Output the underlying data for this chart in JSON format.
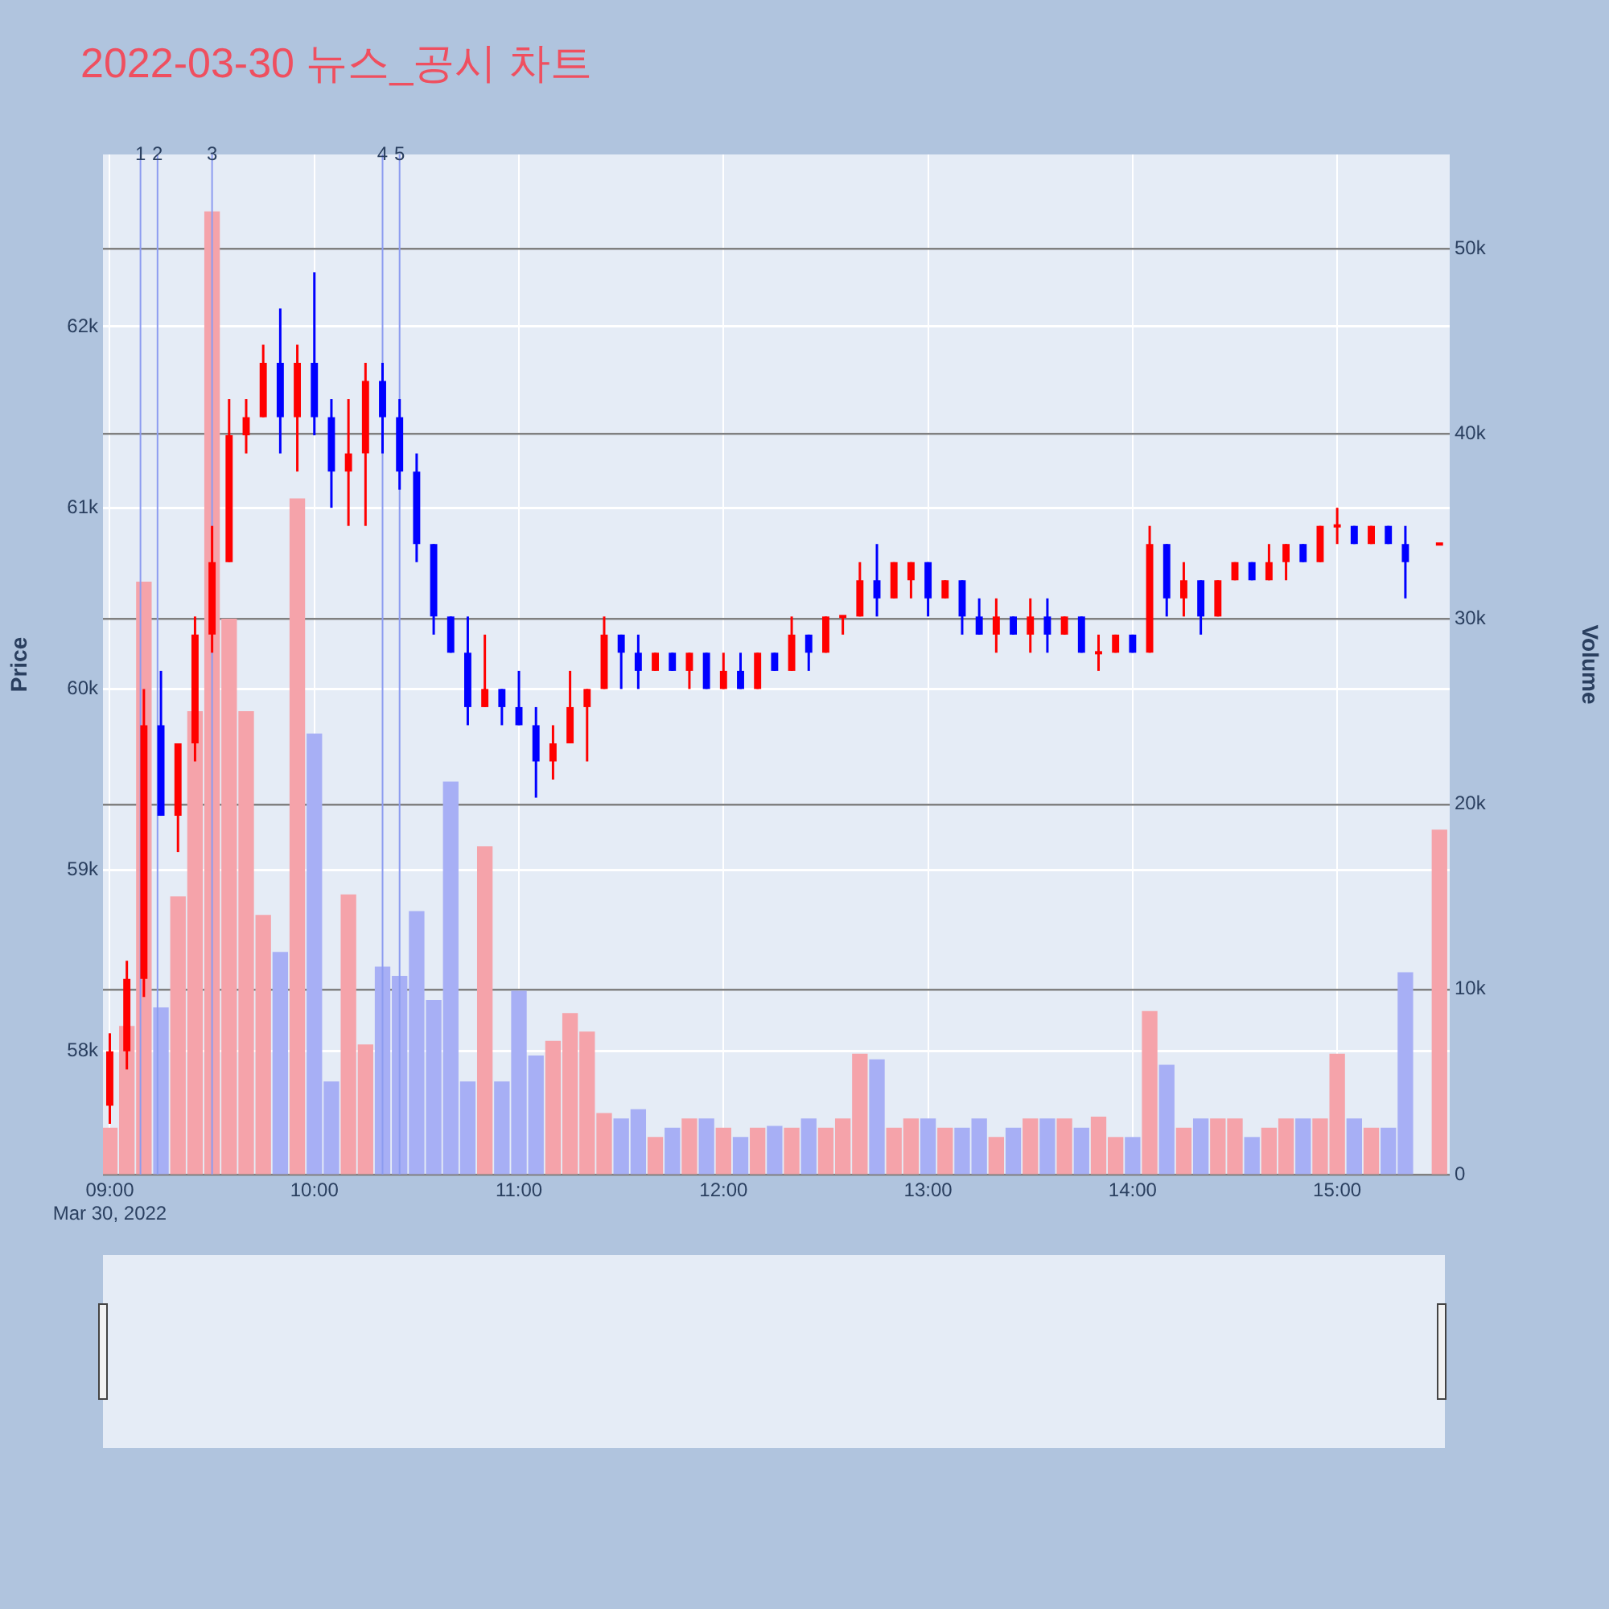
{
  "chart_data": {
    "type": "candlestick",
    "title": "2022-03-30 뉴스_공시 차트",
    "ylabel": "Price",
    "y2label": "Volume",
    "x": [
      "2022-03-30T09:00",
      "2022-03-30T09:05",
      "2022-03-30T09:10",
      "2022-03-30T09:15",
      "2022-03-30T09:20",
      "2022-03-30T09:25",
      "2022-03-30T09:30",
      "2022-03-30T09:35",
      "2022-03-30T09:40",
      "2022-03-30T09:45",
      "2022-03-30T09:50",
      "2022-03-30T09:55",
      "2022-03-30T10:00",
      "2022-03-30T10:05",
      "2022-03-30T10:10",
      "2022-03-30T10:15",
      "2022-03-30T10:20",
      "2022-03-30T10:25",
      "2022-03-30T10:30",
      "2022-03-30T10:35",
      "2022-03-30T10:40",
      "2022-03-30T10:45",
      "2022-03-30T10:50",
      "2022-03-30T10:55",
      "2022-03-30T11:00",
      "2022-03-30T11:05",
      "2022-03-30T11:10",
      "2022-03-30T11:15",
      "2022-03-30T11:20",
      "2022-03-30T11:25",
      "2022-03-30T11:30",
      "2022-03-30T11:35",
      "2022-03-30T11:40",
      "2022-03-30T11:45",
      "2022-03-30T11:50",
      "2022-03-30T11:55",
      "2022-03-30T12:00",
      "2022-03-30T12:05",
      "2022-03-30T12:10",
      "2022-03-30T12:15",
      "2022-03-30T12:20",
      "2022-03-30T12:25",
      "2022-03-30T12:30",
      "2022-03-30T12:35",
      "2022-03-30T12:40",
      "2022-03-30T12:45",
      "2022-03-30T12:50",
      "2022-03-30T12:55",
      "2022-03-30T13:00",
      "2022-03-30T13:05",
      "2022-03-30T13:10",
      "2022-03-30T13:15",
      "2022-03-30T13:20",
      "2022-03-30T13:25",
      "2022-03-30T13:30",
      "2022-03-30T13:35",
      "2022-03-30T13:40",
      "2022-03-30T13:45",
      "2022-03-30T13:50",
      "2022-03-30T13:55",
      "2022-03-30T14:00",
      "2022-03-30T14:05",
      "2022-03-30T14:10",
      "2022-03-30T14:15",
      "2022-03-30T14:20",
      "2022-03-30T14:25",
      "2022-03-30T14:30",
      "2022-03-30T14:35",
      "2022-03-30T14:40",
      "2022-03-30T14:45",
      "2022-03-30T14:50",
      "2022-03-30T14:55",
      "2022-03-30T15:00",
      "2022-03-30T15:05",
      "2022-03-30T15:10",
      "2022-03-30T15:15",
      "2022-03-30T15:20",
      "2022-03-30T15:30"
    ],
    "series": [
      {
        "type": "candlestick",
        "ohlc": [
          [
            57700,
            58100,
            57600,
            58000
          ],
          [
            58000,
            58500,
            57900,
            58400
          ],
          [
            58400,
            60000,
            58300,
            59800
          ],
          [
            59800,
            60100,
            59300,
            59300
          ],
          [
            59300,
            59700,
            59100,
            59700
          ],
          [
            59700,
            60400,
            59600,
            60300
          ],
          [
            60300,
            60900,
            60200,
            60700
          ],
          [
            60700,
            61600,
            60700,
            61400
          ],
          [
            61400,
            61600,
            61300,
            61500
          ],
          [
            61500,
            61900,
            61500,
            61800
          ],
          [
            61800,
            62100,
            61300,
            61500
          ],
          [
            61500,
            61900,
            61200,
            61800
          ],
          [
            61800,
            62300,
            61400,
            61500
          ],
          [
            61500,
            61600,
            61000,
            61200
          ],
          [
            61200,
            61600,
            60900,
            61300
          ],
          [
            61300,
            61800,
            60900,
            61700
          ],
          [
            61700,
            61800,
            61300,
            61500
          ],
          [
            61500,
            61600,
            61100,
            61200
          ],
          [
            61200,
            61300,
            60700,
            60800
          ],
          [
            60800,
            60800,
            60300,
            60400
          ],
          [
            60400,
            60400,
            60200,
            60200
          ],
          [
            60200,
            60400,
            59800,
            59900
          ],
          [
            59900,
            60300,
            59900,
            60000
          ],
          [
            60000,
            60000,
            59800,
            59900
          ],
          [
            59900,
            60100,
            59800,
            59800
          ],
          [
            59800,
            59900,
            59400,
            59600
          ],
          [
            59600,
            59800,
            59500,
            59700
          ],
          [
            59700,
            60100,
            59700,
            59900
          ],
          [
            59900,
            60000,
            59600,
            60000
          ],
          [
            60000,
            60400,
            60000,
            60300
          ],
          [
            60300,
            60300,
            60000,
            60200
          ],
          [
            60200,
            60300,
            60000,
            60100
          ],
          [
            60100,
            60200,
            60100,
            60200
          ],
          [
            60200,
            60200,
            60100,
            60100
          ],
          [
            60100,
            60200,
            60000,
            60200
          ],
          [
            60200,
            60200,
            60000,
            60000
          ],
          [
            60000,
            60200,
            60000,
            60100
          ],
          [
            60100,
            60200,
            60000,
            60000
          ],
          [
            60000,
            60200,
            60000,
            60200
          ],
          [
            60200,
            60200,
            60100,
            60100
          ],
          [
            60100,
            60400,
            60100,
            60300
          ],
          [
            60300,
            60300,
            60100,
            60200
          ],
          [
            60200,
            60400,
            60200,
            60400
          ],
          [
            60400,
            60400,
            60300,
            60400
          ],
          [
            60400,
            60700,
            60400,
            60600
          ],
          [
            60600,
            60800,
            60400,
            60500
          ],
          [
            60500,
            60700,
            60500,
            60700
          ],
          [
            60600,
            60700,
            60500,
            60700
          ],
          [
            60700,
            60700,
            60400,
            60500
          ],
          [
            60500,
            60600,
            60500,
            60600
          ],
          [
            60600,
            60600,
            60300,
            60400
          ],
          [
            60400,
            60500,
            60300,
            60300
          ],
          [
            60300,
            60500,
            60200,
            60400
          ],
          [
            60400,
            60400,
            60300,
            60300
          ],
          [
            60300,
            60500,
            60200,
            60400
          ],
          [
            60400,
            60500,
            60200,
            60300
          ],
          [
            60300,
            60400,
            60300,
            60400
          ],
          [
            60400,
            60400,
            60200,
            60200
          ],
          [
            60200,
            60300,
            60100,
            60200
          ],
          [
            60200,
            60300,
            60200,
            60300
          ],
          [
            60300,
            60300,
            60200,
            60200
          ],
          [
            60200,
            60900,
            60200,
            60800
          ],
          [
            60800,
            60800,
            60400,
            60500
          ],
          [
            60500,
            60700,
            60400,
            60600
          ],
          [
            60600,
            60600,
            60300,
            60400
          ],
          [
            60400,
            60600,
            60400,
            60600
          ],
          [
            60600,
            60700,
            60600,
            60700
          ],
          [
            60700,
            60700,
            60600,
            60600
          ],
          [
            60600,
            60800,
            60600,
            60700
          ],
          [
            60700,
            60800,
            60600,
            60800
          ],
          [
            60800,
            60800,
            60700,
            60700
          ],
          [
            60700,
            60900,
            60700,
            60900
          ],
          [
            60900,
            61000,
            60800,
            60900
          ],
          [
            60900,
            60900,
            60800,
            60800
          ],
          [
            60800,
            60900,
            60800,
            60900
          ],
          [
            60900,
            60900,
            60800,
            60800
          ],
          [
            60800,
            60900,
            60500,
            60700
          ],
          [
            60800,
            60800,
            60800,
            60800
          ]
        ],
        "colors": [
          "#ff0000",
          "#ff0000",
          "#ff0000",
          "#0000ff",
          "#ff0000",
          "#ff0000",
          "#ff0000",
          "#ff0000",
          "#ff0000",
          "#ff0000",
          "#0000ff",
          "#ff0000",
          "#0000ff",
          "#0000ff",
          "#ff0000",
          "#ff0000",
          "#0000ff",
          "#0000ff",
          "#0000ff",
          "#0000ff",
          "#0000ff",
          "#0000ff",
          "#ff0000",
          "#0000ff",
          "#0000ff",
          "#0000ff",
          "#ff0000",
          "#ff0000",
          "#ff0000",
          "#ff0000",
          "#0000ff",
          "#0000ff",
          "#ff0000",
          "#0000ff",
          "#ff0000",
          "#0000ff",
          "#ff0000",
          "#0000ff",
          "#ff0000",
          "#0000ff",
          "#ff0000",
          "#0000ff",
          "#ff0000",
          "#ff0000",
          "#ff0000",
          "#0000ff",
          "#ff0000",
          "#ff0000",
          "#0000ff",
          "#ff0000",
          "#0000ff",
          "#0000ff",
          "#ff0000",
          "#0000ff",
          "#ff0000",
          "#0000ff",
          "#ff0000",
          "#0000ff",
          "#ff0000",
          "#ff0000",
          "#0000ff",
          "#ff0000",
          "#0000ff",
          "#ff0000",
          "#0000ff",
          "#ff0000",
          "#ff0000",
          "#0000ff",
          "#ff0000",
          "#ff0000",
          "#0000ff",
          "#ff0000",
          "#ff0000",
          "#0000ff",
          "#ff0000",
          "#0000ff",
          "#0000ff",
          "#ff0000"
        ]
      },
      {
        "type": "bar",
        "axis": "y2",
        "values": [
          2500,
          8000,
          32000,
          9000,
          15000,
          25000,
          52000,
          30000,
          25000,
          14000,
          12000,
          36500,
          23800,
          5000,
          15100,
          7000,
          11200,
          10700,
          14200,
          9400,
          21200,
          5000,
          17700,
          5000,
          9900,
          6400,
          7200,
          8700,
          7700,
          3300,
          3000,
          3500,
          2000,
          2500,
          3000,
          3000,
          2500,
          2000,
          2500,
          2600,
          2500,
          3000,
          2500,
          3000,
          6500,
          6200,
          2500,
          3000,
          3000,
          2500,
          2500,
          3000,
          2000,
          2500,
          3000,
          3000,
          3000,
          2500,
          3100,
          2000,
          2000,
          8800,
          5900,
          2500,
          3000,
          3000,
          3000,
          2000,
          2500,
          3000,
          3000,
          3000,
          6500,
          3000,
          2500,
          2500,
          10900,
          18600
        ],
        "colors": [
          "#f5a3aa",
          "#f5a3aa",
          "#f5a3aa",
          "#a7aff5",
          "#f5a3aa",
          "#f5a3aa",
          "#f5a3aa",
          "#f5a3aa",
          "#f5a3aa",
          "#f5a3aa",
          "#a7aff5",
          "#f5a3aa",
          "#a7aff5",
          "#a7aff5",
          "#f5a3aa",
          "#f5a3aa",
          "#a7aff5",
          "#a7aff5",
          "#a7aff5",
          "#a7aff5",
          "#a7aff5",
          "#a7aff5",
          "#f5a3aa",
          "#a7aff5",
          "#a7aff5",
          "#a7aff5",
          "#f5a3aa",
          "#f5a3aa",
          "#f5a3aa",
          "#f5a3aa",
          "#a7aff5",
          "#a7aff5",
          "#f5a3aa",
          "#a7aff5",
          "#f5a3aa",
          "#a7aff5",
          "#f5a3aa",
          "#a7aff5",
          "#f5a3aa",
          "#a7aff5",
          "#f5a3aa",
          "#a7aff5",
          "#f5a3aa",
          "#f5a3aa",
          "#f5a3aa",
          "#a7aff5",
          "#f5a3aa",
          "#f5a3aa",
          "#a7aff5",
          "#f5a3aa",
          "#a7aff5",
          "#a7aff5",
          "#f5a3aa",
          "#a7aff5",
          "#f5a3aa",
          "#a7aff5",
          "#f5a3aa",
          "#a7aff5",
          "#f5a3aa",
          "#f5a3aa",
          "#a7aff5",
          "#f5a3aa",
          "#a7aff5",
          "#f5a3aa",
          "#a7aff5",
          "#f5a3aa",
          "#f5a3aa",
          "#a7aff5",
          "#f5a3aa",
          "#f5a3aa",
          "#a7aff5",
          "#f5a3aa",
          "#f5a3aa",
          "#a7aff5",
          "#f5a3aa",
          "#a7aff5",
          "#a7aff5",
          "#f5a3aa"
        ]
      }
    ],
    "xlim": [
      "2022-03-30T08:58",
      "2022-03-30T15:33"
    ],
    "xticks": [
      {
        "value": "2022-03-30T09:00",
        "label": "09:00\nMar 30, 2022"
      },
      {
        "value": "2022-03-30T10:00",
        "label": "10:00"
      },
      {
        "value": "2022-03-30T11:00",
        "label": "11:00"
      },
      {
        "value": "2022-03-30T12:00",
        "label": "12:00"
      },
      {
        "value": "2022-03-30T13:00",
        "label": "13:00"
      },
      {
        "value": "2022-03-30T14:00",
        "label": "14:00"
      },
      {
        "value": "2022-03-30T15:00",
        "label": "15:00"
      }
    ],
    "ylim": [
      57320,
      62950
    ],
    "yticks": [
      {
        "value": 58000,
        "label": "58k"
      },
      {
        "value": 59000,
        "label": "59k"
      },
      {
        "value": 60000,
        "label": "60k"
      },
      {
        "value": 61000,
        "label": "61k"
      },
      {
        "value": 62000,
        "label": "62k"
      }
    ],
    "y2lim": [
      0,
      55100
    ],
    "y2ticks": [
      0,
      {
        "value": 10000,
        "label": "10k"
      },
      {
        "value": 20000,
        "label": "20k"
      },
      {
        "value": 30000,
        "label": "30k"
      },
      {
        "value": 40000,
        "label": "40k"
      },
      {
        "value": 50000,
        "label": "50k"
      }
    ],
    "ref_lines": [
      {
        "axis": "x",
        "value": "2022-03-30T09:09",
        "label": "1",
        "color": "#8c9cf0"
      },
      {
        "axis": "x",
        "value": "2022-03-30T09:14",
        "label": "2",
        "color": "#8c9cf0"
      },
      {
        "axis": "x",
        "value": "2022-03-30T09:30",
        "label": "3",
        "color": "#8c9cf0"
      },
      {
        "axis": "x",
        "value": "2022-03-30T10:20",
        "label": "4",
        "color": "#8c9cf0"
      },
      {
        "axis": "x",
        "value": "2022-03-30T10:25",
        "label": "5",
        "color": "#8c9cf0"
      }
    ],
    "grid": true
  }
}
